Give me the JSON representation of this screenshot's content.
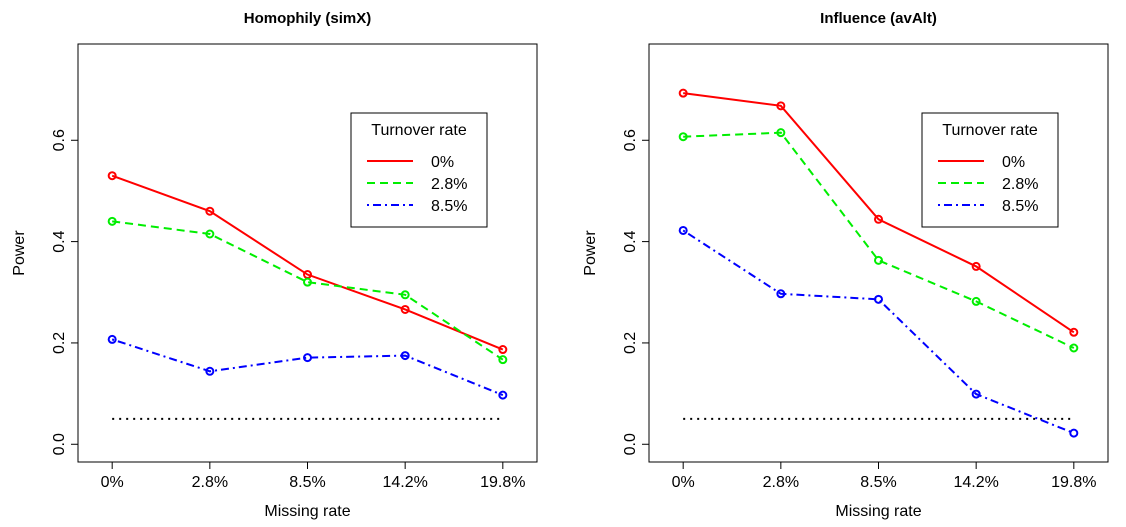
{
  "chart_data": [
    {
      "type": "line",
      "title": "Homophily (simX)",
      "x_label": "Missing rate",
      "y_label": "Power",
      "categories": [
        "0%",
        "2.8%",
        "8.5%",
        "14.2%",
        "19.8%"
      ],
      "series": [
        {
          "name": "0%",
          "color": "#ff0000",
          "dash": "solid",
          "values": [
            0.53,
            0.46,
            0.335,
            0.266,
            0.187
          ]
        },
        {
          "name": "2.8%",
          "color": "#00ee00",
          "dash": "dashed",
          "values": [
            0.44,
            0.415,
            0.32,
            0.295,
            0.167
          ]
        },
        {
          "name": "8.5%",
          "color": "#0000ff",
          "dash": "dotdash",
          "values": [
            0.207,
            0.144,
            0.171,
            0.175,
            0.097
          ]
        }
      ],
      "hline": 0.05,
      "legend_title": "Turnover rate",
      "legend": "top-right",
      "ylim": [
        -0.035,
        0.79
      ],
      "yticks": [
        {
          "value": 0,
          "label": "0.0"
        },
        0.2,
        0.4,
        0.6
      ]
    },
    {
      "type": "line",
      "title": "Influence (avAlt)",
      "x_label": "Missing rate",
      "y_label": "Power",
      "categories": [
        "0%",
        "2.8%",
        "8.5%",
        "14.2%",
        "19.8%"
      ],
      "series": [
        {
          "name": "0%",
          "color": "#ff0000",
          "dash": "solid",
          "values": [
            0.693,
            0.668,
            0.444,
            0.351,
            0.221
          ]
        },
        {
          "name": "2.8%",
          "color": "#00ee00",
          "dash": "dashed",
          "values": [
            0.607,
            0.615,
            0.363,
            0.282,
            0.19
          ]
        },
        {
          "name": "8.5%",
          "color": "#0000ff",
          "dash": "dotdash",
          "values": [
            0.422,
            0.297,
            0.286,
            0.099,
            0.022
          ]
        }
      ],
      "hline": 0.05,
      "legend_title": "Turnover rate",
      "legend": "top-right",
      "ylim": [
        -0.035,
        0.79
      ],
      "yticks": [
        {
          "value": 0,
          "label": "0.0"
        },
        0.2,
        0.4,
        0.6
      ]
    }
  ]
}
